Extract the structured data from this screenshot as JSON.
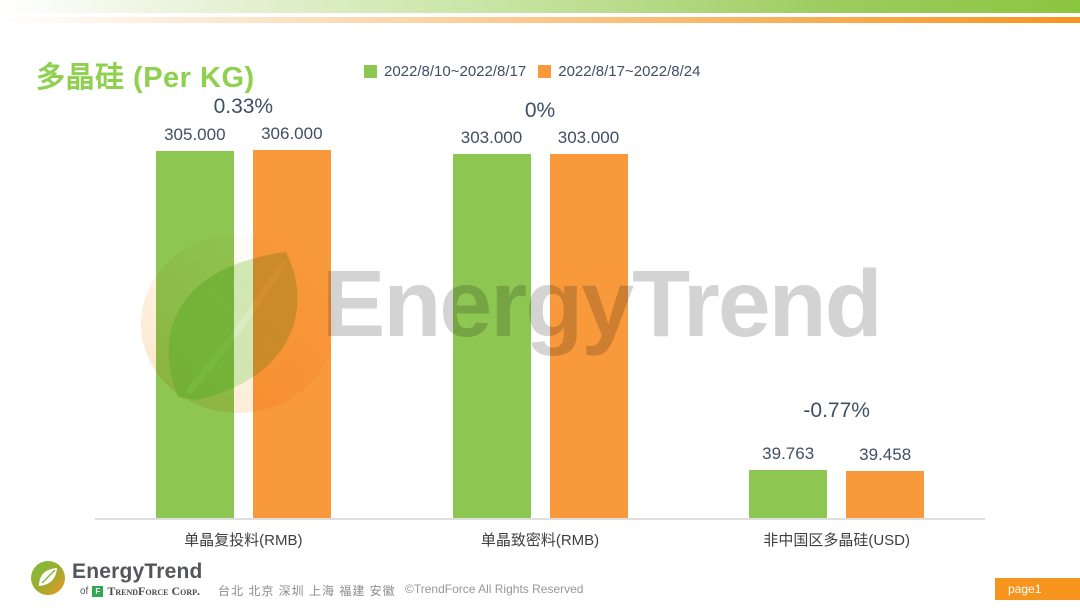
{
  "chart_data": {
    "type": "bar",
    "title": "多晶硅 (Per KG)",
    "categories": [
      "单晶复投料(RMB)",
      "单晶致密料(RMB)",
      "非中国区多晶硅(USD)"
    ],
    "series": [
      {
        "name": "2022/8/10~2022/8/17",
        "color": "#8ec652",
        "values": [
          305.0,
          303.0,
          39.763
        ]
      },
      {
        "name": "2022/8/17~2022/8/24",
        "color": "#f8993b",
        "values": [
          306.0,
          303.0,
          39.458
        ]
      }
    ],
    "value_labels": [
      [
        "305.000",
        "306.000"
      ],
      [
        "303.000",
        "303.000"
      ],
      [
        "39.763",
        "39.458"
      ]
    ],
    "change_labels": [
      "0.33%",
      "0%",
      "-0.77%"
    ],
    "ylim": [
      0,
      357
    ],
    "grid": false,
    "legend_position": "top-center",
    "xlabel": "",
    "ylabel": ""
  },
  "watermark": {
    "text": "EnergyTrend"
  },
  "footer": {
    "brand": "EnergyTrend",
    "brand_sub_prefix": "of",
    "brand_sub": "TrendForce Corp.",
    "tf_icon_glyph": "F",
    "cities": "台北 北京 深圳 上海 福建 安徽",
    "copyright": "©TrendForce All Rights Reserved",
    "page": "page1"
  },
  "colors": {
    "title_green": "#8fd04f",
    "label_text": "#404f63",
    "category_text": "#3f3f3f",
    "axis_line": "#dedede",
    "badge_orange": "#f7941e",
    "band_green": "#8cc63f",
    "band_orange": "#f7941e"
  }
}
